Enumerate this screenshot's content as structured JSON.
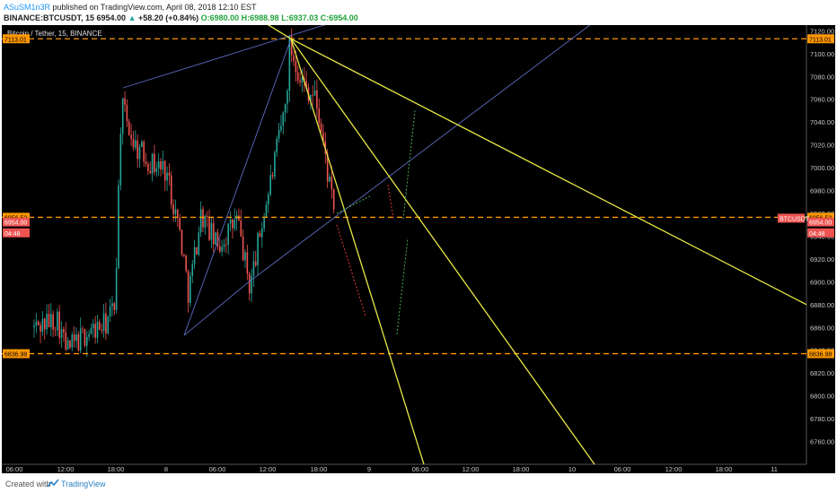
{
  "header": {
    "author": "ASuSM1n3R",
    "published_text": "published on TradingView.com, April 08, 2018 12:10 EST",
    "symbol_line": "BINANCE:BTCUSDT, 15",
    "last": "6954.00",
    "change": "+58.20 (+0.84%)",
    "open": "O:6980.00",
    "high": "H:6988.98",
    "low": "L:6937.03",
    "close": "C:6954.00"
  },
  "footer": {
    "created_with": "Created with",
    "brand": "TradingView"
  },
  "chart_data": {
    "type": "candlestick",
    "title": "Bitcoin / Tether, 15, BINANCE",
    "symbol_tag": "BTCUSDT",
    "ylim": [
      6740,
      7125
    ],
    "y_ticks": [
      6760,
      6780,
      6800,
      6820,
      6840,
      6860,
      6880,
      6900,
      6920,
      6940,
      6960,
      6980,
      7000,
      7020,
      7040,
      7060,
      7080,
      7100,
      7120
    ],
    "x_ticks": [
      "06:00",
      "12:00",
      "18:00",
      "8",
      "06:00",
      "12:00",
      "18:00",
      "9",
      "06:00",
      "12:00",
      "18:00",
      "10",
      "06:00",
      "12:00",
      "18:00",
      "11"
    ],
    "horizontal_levels": [
      {
        "value": 7113.01,
        "label": "7113.01"
      },
      {
        "value": 6956.53,
        "label": "6956.53"
      },
      {
        "value": 6836.98,
        "label": "6836.98"
      }
    ],
    "price_labels": [
      {
        "value": 6954.0,
        "label": "6954.00"
      },
      {
        "value": 6944.48,
        "label": "04:48"
      }
    ],
    "colors": {
      "background": "#000000",
      "up": "#26a69a",
      "down": "#ef5350",
      "level": "#ff9800",
      "fan": "#e8e844",
      "trend": "#5c6bc0",
      "green_arrow": "#4caf50",
      "red_arrow": "#e53935"
    }
  }
}
